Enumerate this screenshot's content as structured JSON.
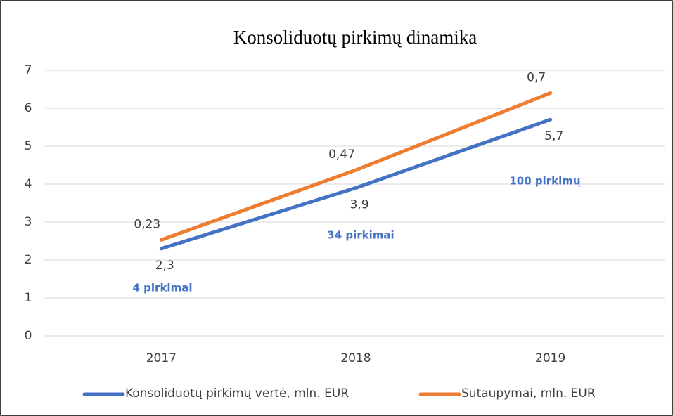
{
  "chart_data": {
    "type": "line",
    "stacked": true,
    "title": "Konsoliduotų pirkimų dinamika",
    "categories": [
      "2017",
      "2018",
      "2019"
    ],
    "series": [
      {
        "name": "Konsoliduotų pirkimų vertė, mln. EUR",
        "color": "#4472c4",
        "values": [
          2.3,
          3.9,
          5.7
        ],
        "value_labels": [
          "2,3",
          "3,9",
          "5,7"
        ]
      },
      {
        "name": "Sutaupymai, mln. EUR",
        "color": "#ed7d31",
        "values": [
          0.23,
          0.47,
          0.7
        ],
        "value_labels": [
          "0,23",
          "0,47",
          "0,7"
        ]
      }
    ],
    "annotations": [
      "4 pirkimai",
      "34 pirkimai",
      "100 pirkimų"
    ],
    "ylim": [
      0,
      7
    ],
    "yticks": [
      0,
      1,
      2,
      3,
      4,
      5,
      6,
      7
    ],
    "grid": true,
    "legend": "bottom"
  }
}
